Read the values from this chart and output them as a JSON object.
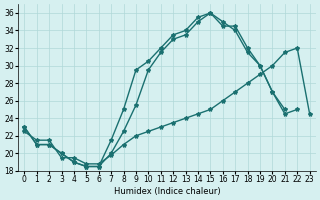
{
  "xlabel": "Humidex (Indice chaleur)",
  "background_color": "#d6f0f0",
  "grid_color": "#b0d8d8",
  "line_color": "#1a7070",
  "xlim": [
    -0.5,
    23.5
  ],
  "ylim": [
    18,
    37
  ],
  "yticks": [
    18,
    20,
    22,
    24,
    26,
    28,
    30,
    32,
    34,
    36
  ],
  "xticks": [
    0,
    1,
    2,
    3,
    4,
    5,
    6,
    7,
    8,
    9,
    10,
    11,
    12,
    13,
    14,
    15,
    16,
    17,
    18,
    19,
    20,
    21,
    22,
    23
  ],
  "series": [
    {
      "x": [
        0,
        1,
        2,
        3,
        4,
        5,
        6,
        7,
        8,
        9,
        10,
        11,
        12,
        13,
        14,
        15,
        16,
        17,
        18,
        19,
        20,
        21
      ],
      "y": [
        23,
        21,
        21,
        20,
        19,
        18.5,
        18.5,
        21.5,
        25,
        29.5,
        30.5,
        32,
        33.5,
        34,
        35.5,
        36,
        35,
        34,
        31.5,
        30,
        27,
        25
      ]
    },
    {
      "x": [
        0,
        1,
        2,
        3,
        4,
        5,
        6,
        7,
        8,
        9,
        10,
        11,
        12,
        13,
        14,
        15,
        16,
        17,
        18,
        19,
        20,
        21,
        22,
        23
      ],
      "y": [
        22.5,
        21.5,
        21.5,
        19.5,
        19.5,
        18.8,
        18.8,
        19.8,
        21,
        22,
        22.5,
        23,
        23.5,
        24,
        24.5,
        25,
        26,
        27,
        28,
        29,
        30,
        31.5,
        32,
        24.5
      ]
    },
    {
      "x": [
        0,
        1,
        2,
        3,
        4,
        5,
        6,
        7,
        8,
        9,
        10,
        11,
        12,
        13,
        14,
        15,
        16,
        17,
        18,
        19,
        20,
        21,
        22
      ],
      "y": [
        23,
        21,
        21,
        20,
        19,
        18.5,
        18.5,
        20,
        22.5,
        25.5,
        29.5,
        31.5,
        33,
        33.5,
        35,
        36,
        34.5,
        34.5,
        32,
        30,
        27,
        24.5,
        25
      ]
    }
  ]
}
